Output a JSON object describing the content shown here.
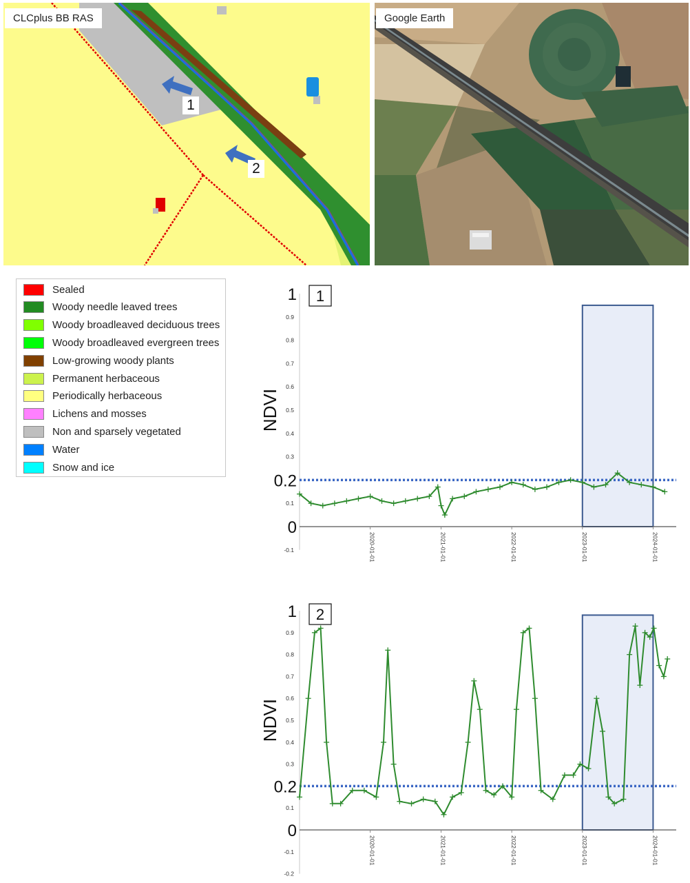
{
  "map_panel": {
    "label": "CLCplus BB RAS",
    "arrow_labels": [
      "1",
      "2"
    ],
    "colors": {
      "background": "#fdfb8c",
      "sparse": "#bfbfbf",
      "forest": "#2f8f2f",
      "shrub": "#7a3f12",
      "sealed": "#e00000",
      "water": "#1a8fe0",
      "arrow": "#3f70c0"
    }
  },
  "satellite_panel": {
    "label": "Google Earth"
  },
  "legend": {
    "items": [
      {
        "label": "Sealed",
        "color": "#ff0000"
      },
      {
        "label": "Woody needle leaved trees",
        "color": "#228b22"
      },
      {
        "label": "Woody broadleaved deciduous trees",
        "color": "#80ff00"
      },
      {
        "label": "Woody broadleaved evergreen trees",
        "color": "#00ff08"
      },
      {
        "label": "Low-growing woody plants",
        "color": "#804000"
      },
      {
        "label": "Permanent herbaceous",
        "color": "#ccf24d"
      },
      {
        "label": "Periodically herbaceous",
        "color": "#ffff80"
      },
      {
        "label": "Lichens and mosses",
        "color": "#ff80ff"
      },
      {
        "label": "Non and sparsely vegetated",
        "color": "#bfbfbf"
      },
      {
        "label": "Water",
        "color": "#0080ff"
      },
      {
        "label": "Snow and ice",
        "color": "#00ffff"
      }
    ]
  },
  "chart_data": [
    {
      "type": "line",
      "panel_label": "1",
      "ylabel": "NDVI",
      "ylim": [
        -0.1,
        1.0
      ],
      "xlim": [
        "2019-01-01",
        "2024-04-01"
      ],
      "yticks_small": [
        "0.9",
        "0.8",
        "0.7",
        "0.6",
        "0.5",
        "0.4",
        "0.3",
        "0.1",
        "-0.1"
      ],
      "yticks_large": [
        "1",
        "0.2",
        "0"
      ],
      "xticks": [
        "2020-01-01",
        "2021-01-01",
        "2022-01-01",
        "2023-01-01",
        "2024-01-01"
      ],
      "threshold": 0.2,
      "highlight": [
        "2023-01-01",
        "2024-01-01"
      ],
      "highlight_ylim": [
        0,
        0.95
      ],
      "colors": {
        "series": "#2e8b2e",
        "threshold": "#3a66c4",
        "highlight_fill": "#e8edf8",
        "highlight_stroke": "#3b5a90"
      },
      "series": [
        {
          "x": [
            "2019-01-01",
            "2019-03-01",
            "2019-05-01",
            "2019-07-01",
            "2019-09-01",
            "2019-11-01",
            "2020-01-01",
            "2020-03-01",
            "2020-05-01",
            "2020-07-01",
            "2020-09-01",
            "2020-11-01",
            "2020-12-15",
            "2021-01-01",
            "2021-01-20",
            "2021-03-01",
            "2021-05-01",
            "2021-07-01",
            "2021-09-01",
            "2021-11-01",
            "2022-01-01",
            "2022-03-01",
            "2022-05-01",
            "2022-07-01",
            "2022-09-01",
            "2022-11-01",
            "2023-01-01",
            "2023-03-01",
            "2023-05-01",
            "2023-07-01",
            "2023-09-01",
            "2023-11-01",
            "2024-01-01",
            "2024-03-01"
          ],
          "y": [
            0.14,
            0.1,
            0.09,
            0.1,
            0.11,
            0.12,
            0.13,
            0.11,
            0.1,
            0.11,
            0.12,
            0.13,
            0.17,
            0.09,
            0.05,
            0.12,
            0.13,
            0.15,
            0.16,
            0.17,
            0.19,
            0.18,
            0.16,
            0.17,
            0.19,
            0.2,
            0.19,
            0.17,
            0.18,
            0.23,
            0.19,
            0.18,
            0.17,
            0.15
          ]
        }
      ]
    },
    {
      "type": "line",
      "panel_label": "2",
      "ylabel": "NDVI",
      "ylim": [
        -0.2,
        1.0
      ],
      "xlim": [
        "2019-01-01",
        "2024-04-01"
      ],
      "yticks_small": [
        "0.9",
        "0.8",
        "0.7",
        "0.6",
        "0.5",
        "0.4",
        "0.3",
        "0.1",
        "-0.1",
        "-0.2"
      ],
      "yticks_large": [
        "1",
        "0.2",
        "0"
      ],
      "xticks": [
        "2020-01-01",
        "2021-01-01",
        "2022-01-01",
        "2023-01-01",
        "2024-01-01"
      ],
      "threshold": 0.2,
      "highlight": [
        "2023-01-01",
        "2024-01-01"
      ],
      "highlight_ylim": [
        0,
        0.98
      ],
      "colors": {
        "series": "#2e8b2e",
        "threshold": "#3a66c4",
        "highlight_fill": "#e8edf8",
        "highlight_stroke": "#3b5a90"
      },
      "series": [
        {
          "x": [
            "2019-01-01",
            "2019-02-15",
            "2019-03-20",
            "2019-04-20",
            "2019-05-20",
            "2019-06-20",
            "2019-08-01",
            "2019-10-01",
            "2019-12-01",
            "2020-02-01",
            "2020-03-10",
            "2020-04-01",
            "2020-05-01",
            "2020-06-01",
            "2020-08-01",
            "2020-10-01",
            "2020-12-01",
            "2021-01-15",
            "2021-03-01",
            "2021-04-15",
            "2021-05-20",
            "2021-06-20",
            "2021-07-20",
            "2021-08-20",
            "2021-10-01",
            "2021-11-15",
            "2022-01-01",
            "2022-01-25",
            "2022-03-01",
            "2022-04-01",
            "2022-05-01",
            "2022-06-01",
            "2022-08-01",
            "2022-10-01",
            "2022-11-15",
            "2022-12-20",
            "2023-02-01",
            "2023-03-15",
            "2023-04-15",
            "2023-05-15",
            "2023-06-15",
            "2023-08-01",
            "2023-09-01",
            "2023-10-01",
            "2023-10-25",
            "2023-11-20",
            "2023-12-15",
            "2024-01-05",
            "2024-02-01",
            "2024-02-25",
            "2024-03-15"
          ],
          "y": [
            0.15,
            0.6,
            0.9,
            0.92,
            0.4,
            0.12,
            0.12,
            0.18,
            0.18,
            0.15,
            0.4,
            0.82,
            0.3,
            0.13,
            0.12,
            0.14,
            0.13,
            0.07,
            0.15,
            0.17,
            0.4,
            0.68,
            0.55,
            0.18,
            0.16,
            0.2,
            0.15,
            0.55,
            0.9,
            0.92,
            0.6,
            0.18,
            0.14,
            0.25,
            0.25,
            0.3,
            0.28,
            0.6,
            0.45,
            0.15,
            0.12,
            0.14,
            0.8,
            0.93,
            0.66,
            0.9,
            0.88,
            0.92,
            0.75,
            0.7,
            0.78
          ]
        }
      ]
    }
  ]
}
